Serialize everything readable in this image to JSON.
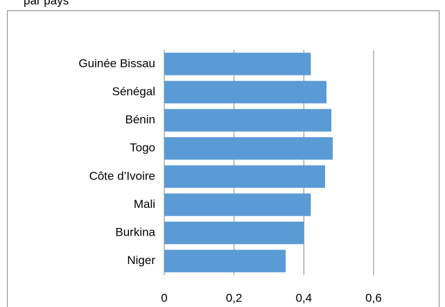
{
  "chart_data": {
    "type": "barh",
    "title": "par pays",
    "categories": [
      "Guinée Bissau",
      "Sénégal",
      "Bénin",
      "Togo",
      "Côte d’Ivoire",
      "Mali",
      "Burkina",
      "Niger"
    ],
    "values": [
      0.42,
      0.465,
      0.479,
      0.483,
      0.461,
      0.42,
      0.401,
      0.348
    ],
    "color": "#5b9bd5",
    "xlim": [
      0,
      0.6
    ],
    "xticks": [
      {
        "value": 0,
        "label": "0"
      },
      {
        "value": 0.2,
        "label": "0,2"
      },
      {
        "value": 0.4,
        "label": "0,4"
      },
      {
        "value": 0.6,
        "label": "0,6"
      }
    ],
    "grid": true
  }
}
